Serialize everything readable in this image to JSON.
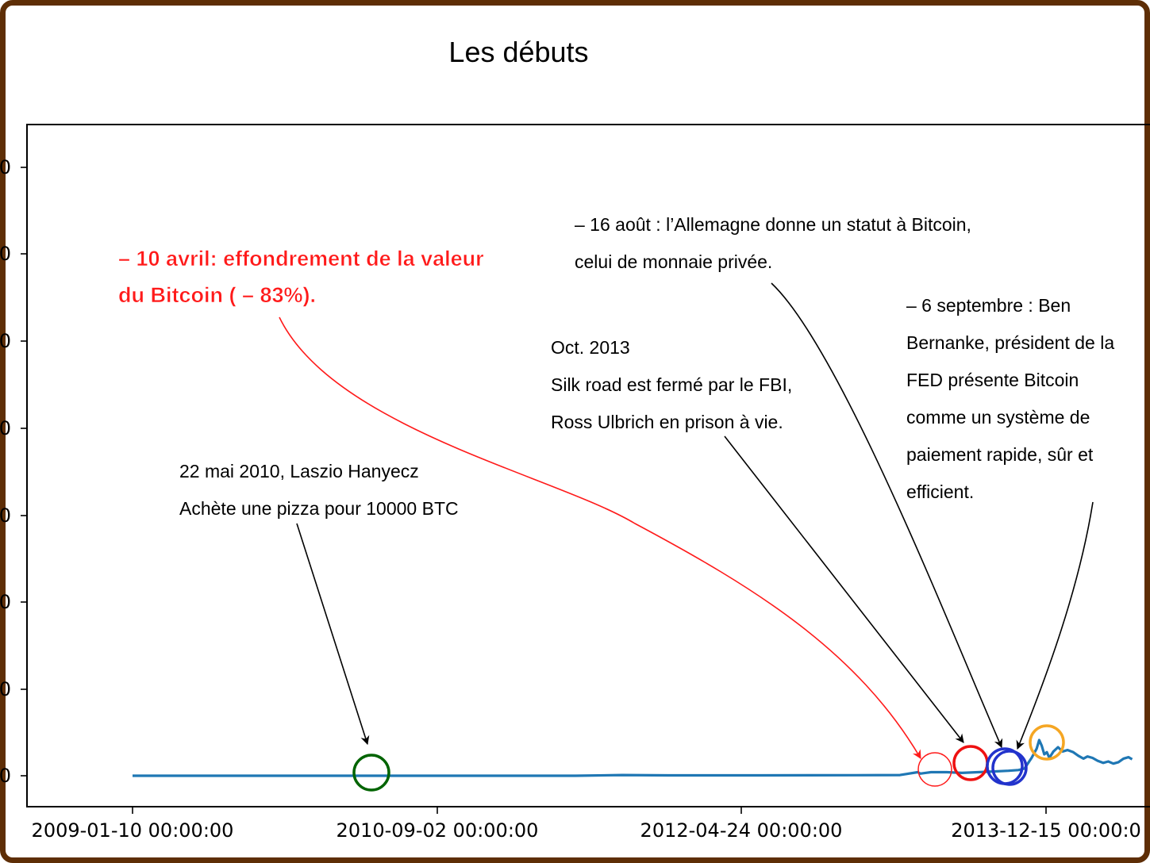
{
  "chart_data": {
    "type": "line",
    "title": "Les débuts",
    "xlabel": "",
    "ylabel": "",
    "x_tick_labels": [
      "2009-01-10 00:00:00",
      "2010-09-02 00:00:00",
      "2012-04-24 00:00:00",
      "2013-12-15 00:00:0"
    ],
    "grid": false,
    "series": [
      {
        "color": "#1f77b4",
        "points": [
          [
            "2009-01-10",
            0
          ],
          [
            "2009-06-01",
            0
          ],
          [
            "2009-12-01",
            0
          ],
          [
            "2010-06-01",
            0
          ],
          [
            "2010-12-01",
            0
          ],
          [
            "2011-06-01",
            0
          ],
          [
            "2011-09-01",
            0.1
          ],
          [
            "2011-12-01",
            0.05
          ],
          [
            "2012-06-01",
            0.05
          ],
          [
            "2012-12-01",
            0.08
          ],
          [
            "2013-03-01",
            0.1
          ],
          [
            "2013-04-05",
            0.5
          ],
          [
            "2013-04-10",
            0.3
          ],
          [
            "2013-04-20",
            0.4
          ],
          [
            "2013-05-01",
            0.5
          ],
          [
            "2013-06-01",
            0.5
          ],
          [
            "2013-07-01",
            0.4
          ],
          [
            "2013-08-01",
            0.5
          ],
          [
            "2013-09-01",
            0.6
          ],
          [
            "2013-10-01",
            0.7
          ],
          [
            "2013-10-20",
            0.8
          ],
          [
            "2013-11-01",
            1.0
          ],
          [
            "2013-11-15",
            2.5
          ],
          [
            "2013-11-25",
            3.8
          ],
          [
            "2013-11-30",
            5.0
          ],
          [
            "2013-12-05",
            4.2
          ],
          [
            "2013-12-10",
            3.0
          ],
          [
            "2013-12-15",
            3.3
          ],
          [
            "2013-12-20",
            2.5
          ],
          [
            "2013-12-28",
            3.4
          ],
          [
            "2014-01-06",
            4.0
          ],
          [
            "2014-01-15",
            3.4
          ],
          [
            "2014-01-25",
            3.6
          ],
          [
            "2014-02-05",
            3.3
          ],
          [
            "2014-02-15",
            2.8
          ],
          [
            "2014-02-25",
            2.4
          ],
          [
            "2014-03-05",
            2.7
          ],
          [
            "2014-03-15",
            2.5
          ],
          [
            "2014-03-25",
            2.1
          ],
          [
            "2014-04-05",
            1.8
          ],
          [
            "2014-04-15",
            2.0
          ],
          [
            "2014-04-25",
            1.7
          ],
          [
            "2014-05-05",
            1.9
          ],
          [
            "2014-05-15",
            2.4
          ],
          [
            "2014-05-25",
            2.6
          ],
          [
            "2014-06-01",
            2.3
          ]
        ]
      }
    ],
    "annotations": [
      {
        "id": "pizza",
        "lines": [
          "22 mai 2010, Laszio Hanyecz",
          "Achète une pizza pour 10000 BTC"
        ],
        "color": "#000000",
        "circle_color": "#006400",
        "target": [
          "2010-05-22",
          0
        ]
      },
      {
        "id": "crash",
        "lines": [
          "– 10 avril: effondrement de la valeur",
          "du Bitcoin ( – 83%)."
        ],
        "color": "#ff1a1a",
        "circle_color": "#ff1a1a",
        "target": [
          "2013-04-10",
          0.3
        ]
      },
      {
        "id": "silkroad",
        "lines": [
          "Oct. 2013",
          "Silk road est fermé par le FBI,",
          "Ross Ulbrich en prison à vie."
        ],
        "color": "#000000",
        "circle_color": "#ee1111",
        "target": [
          "2013-08-01",
          0.5
        ]
      },
      {
        "id": "allemagne",
        "lines": [
          "– 16 août : l’Allemagne donne un statut à Bitcoin,",
          "celui de monnaie privée."
        ],
        "color": "#000000",
        "circle_color": "#2233cc",
        "target": [
          "2013-10-01",
          0.7
        ]
      },
      {
        "id": "bernanke",
        "lines": [
          "– 6 septembre : Ben",
          "Bernanke, président de la",
          "FED présente Bitcoin",
          "comme un système de",
          "paiement rapide, sûr et",
          "efficient."
        ],
        "color": "#000000",
        "circle_color": "#2233cc",
        "target": [
          "2013-10-20",
          0.8
        ]
      },
      {
        "id": "peak",
        "lines": [],
        "color": "#000000",
        "circle_color": "#f5a623",
        "target": [
          "2013-11-30",
          4.5
        ]
      }
    ]
  }
}
